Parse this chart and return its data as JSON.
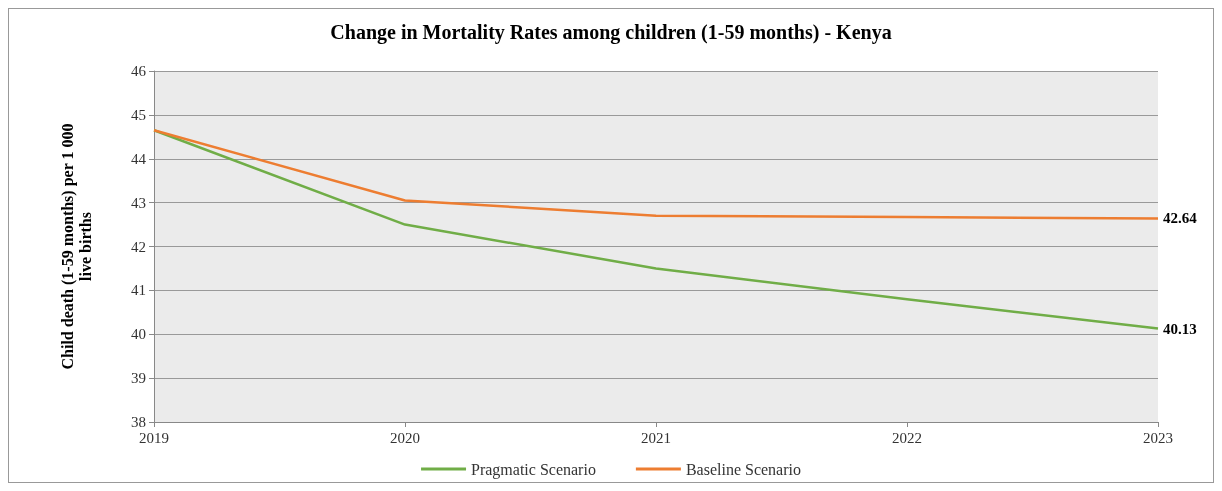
{
  "chart_data": {
    "type": "line",
    "title": "Change in Mortality Rates among children (1-59 months) - Kenya",
    "ylabel": "Child death (1-59 months) per 1 000\nlive births",
    "x": [
      2019,
      2020,
      2021,
      2022,
      2023
    ],
    "xlim": [
      2019,
      2023
    ],
    "xticks": [
      2019,
      2020,
      2021,
      2022,
      2023
    ],
    "ylim": [
      38,
      46
    ],
    "yticks": [
      38,
      39,
      40,
      41,
      42,
      43,
      44,
      45,
      46
    ],
    "grid": "y",
    "legend": "bottom",
    "marker": "none",
    "line_style": "solid",
    "series": [
      {
        "name": "Pragmatic Scenario",
        "color": "#70ad47",
        "values": [
          44.65,
          42.5,
          41.5,
          40.8,
          40.13
        ],
        "value_labels": [
          null,
          null,
          null,
          null,
          "40.13"
        ]
      },
      {
        "name": "Baseline Scenario",
        "color": "#ed7d31",
        "values": [
          44.65,
          43.05,
          42.7,
          42.67,
          42.64
        ],
        "value_labels": [
          null,
          null,
          null,
          null,
          "42.64"
        ]
      }
    ]
  }
}
